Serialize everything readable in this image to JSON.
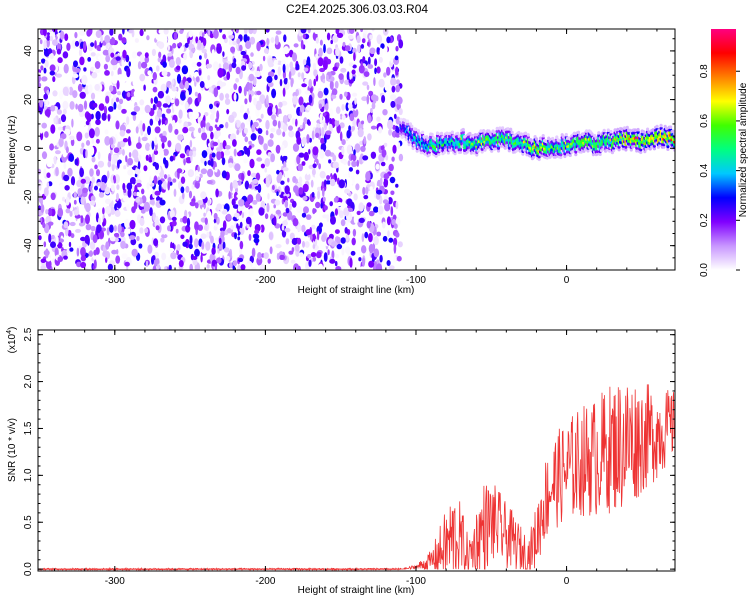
{
  "title": "C2E4.2025.306.03.03.R04",
  "chart_data": [
    {
      "type": "heatmap",
      "title": "C2E4.2025.306.03.03.R04",
      "xlabel": "Height of straight line (km)",
      "ylabel": "Frequency (Hz)",
      "xlim": [
        -351,
        72
      ],
      "ylim": [
        -50,
        49
      ],
      "xticks": [
        -300,
        -200,
        -100,
        0
      ],
      "xtick_labels": [
        "-300",
        "-200",
        "-100",
        "0"
      ],
      "yticks": [
        40,
        20,
        0,
        -20,
        -40
      ],
      "ytick_labels": [
        "40",
        "20",
        "0",
        "-20",
        "-40"
      ],
      "noise_region_x": [
        -351,
        -110
      ],
      "signal_ridge": {
        "x": [
          -110,
          -100,
          -90,
          -80,
          -70,
          -60,
          -50,
          -40,
          -30,
          -20,
          -10,
          0,
          10,
          20,
          30,
          40,
          50,
          60,
          72
        ],
        "freq_hz": [
          10,
          3,
          1,
          2,
          3,
          2,
          3,
          4,
          2,
          0,
          1,
          1,
          3,
          2,
          3,
          4,
          3,
          5,
          4
        ],
        "amplitude": [
          0.3,
          0.45,
          0.55,
          0.5,
          0.55,
          0.6,
          0.62,
          0.6,
          0.58,
          0.75,
          0.55,
          0.6,
          0.65,
          0.6,
          0.65,
          0.75,
          0.7,
          0.85,
          0.8
        ]
      },
      "colorbar": {
        "label": "Normalized spectral amplitude",
        "range": [
          0.0,
          0.97
        ],
        "ticks": [
          0.0,
          0.2,
          0.4,
          0.6,
          0.8
        ],
        "tick_labels": [
          "0.0",
          "0.2",
          "0.4",
          "0.6",
          "0.8"
        ],
        "colors": [
          "#ffffff",
          "#c896ff",
          "#8000ff",
          "#0000ff",
          "#00c8ff",
          "#00ff80",
          "#40ff00",
          "#ffff00",
          "#ff8000",
          "#ff0000",
          "#ff0080"
        ]
      }
    },
    {
      "type": "line",
      "xlabel": "Height of straight line (km)",
      "ylabel": "SNR (10 * v/v)",
      "scale_label": "(x10",
      "scale_exp": "4",
      "scale_close": ")",
      "xlim": [
        -351,
        72
      ],
      "ylim": [
        -0.02,
        2.55
      ],
      "xticks": [
        -300,
        -200,
        -100,
        0
      ],
      "xtick_labels": [
        "-300",
        "-200",
        "-100",
        "0"
      ],
      "yticks": [
        0.0,
        0.5,
        1.0,
        1.5,
        2.0,
        2.5
      ],
      "ytick_labels": [
        "0.0",
        "0.5",
        "1.0",
        "1.5",
        "2.0",
        "2.5"
      ],
      "color": "#ee3333",
      "series": [
        {
          "name": "SNR",
          "x": [
            -351,
            -110,
            -100,
            -90,
            -80,
            -75,
            -70,
            -65,
            -60,
            -55,
            -50,
            -45,
            -40,
            -35,
            -30,
            -25,
            -20,
            -15,
            -10,
            0,
            10,
            20,
            30,
            40,
            50,
            60,
            72
          ],
          "mean": [
            0.0,
            0.0,
            0.02,
            0.08,
            0.25,
            0.35,
            0.3,
            0.12,
            0.3,
            0.45,
            0.5,
            0.45,
            0.35,
            0.3,
            0.2,
            0.15,
            0.35,
            0.7,
            0.9,
            1.05,
            1.15,
            1.2,
            1.3,
            1.35,
            1.4,
            1.45,
            1.55
          ],
          "spread": [
            0.0,
            0.0,
            0.03,
            0.12,
            0.4,
            0.5,
            0.4,
            0.2,
            0.35,
            0.5,
            0.45,
            0.4,
            0.35,
            0.3,
            0.25,
            0.2,
            0.35,
            0.45,
            0.5,
            0.55,
            0.6,
            0.65,
            0.7,
            0.75,
            0.6,
            0.5,
            0.35
          ]
        }
      ]
    }
  ]
}
